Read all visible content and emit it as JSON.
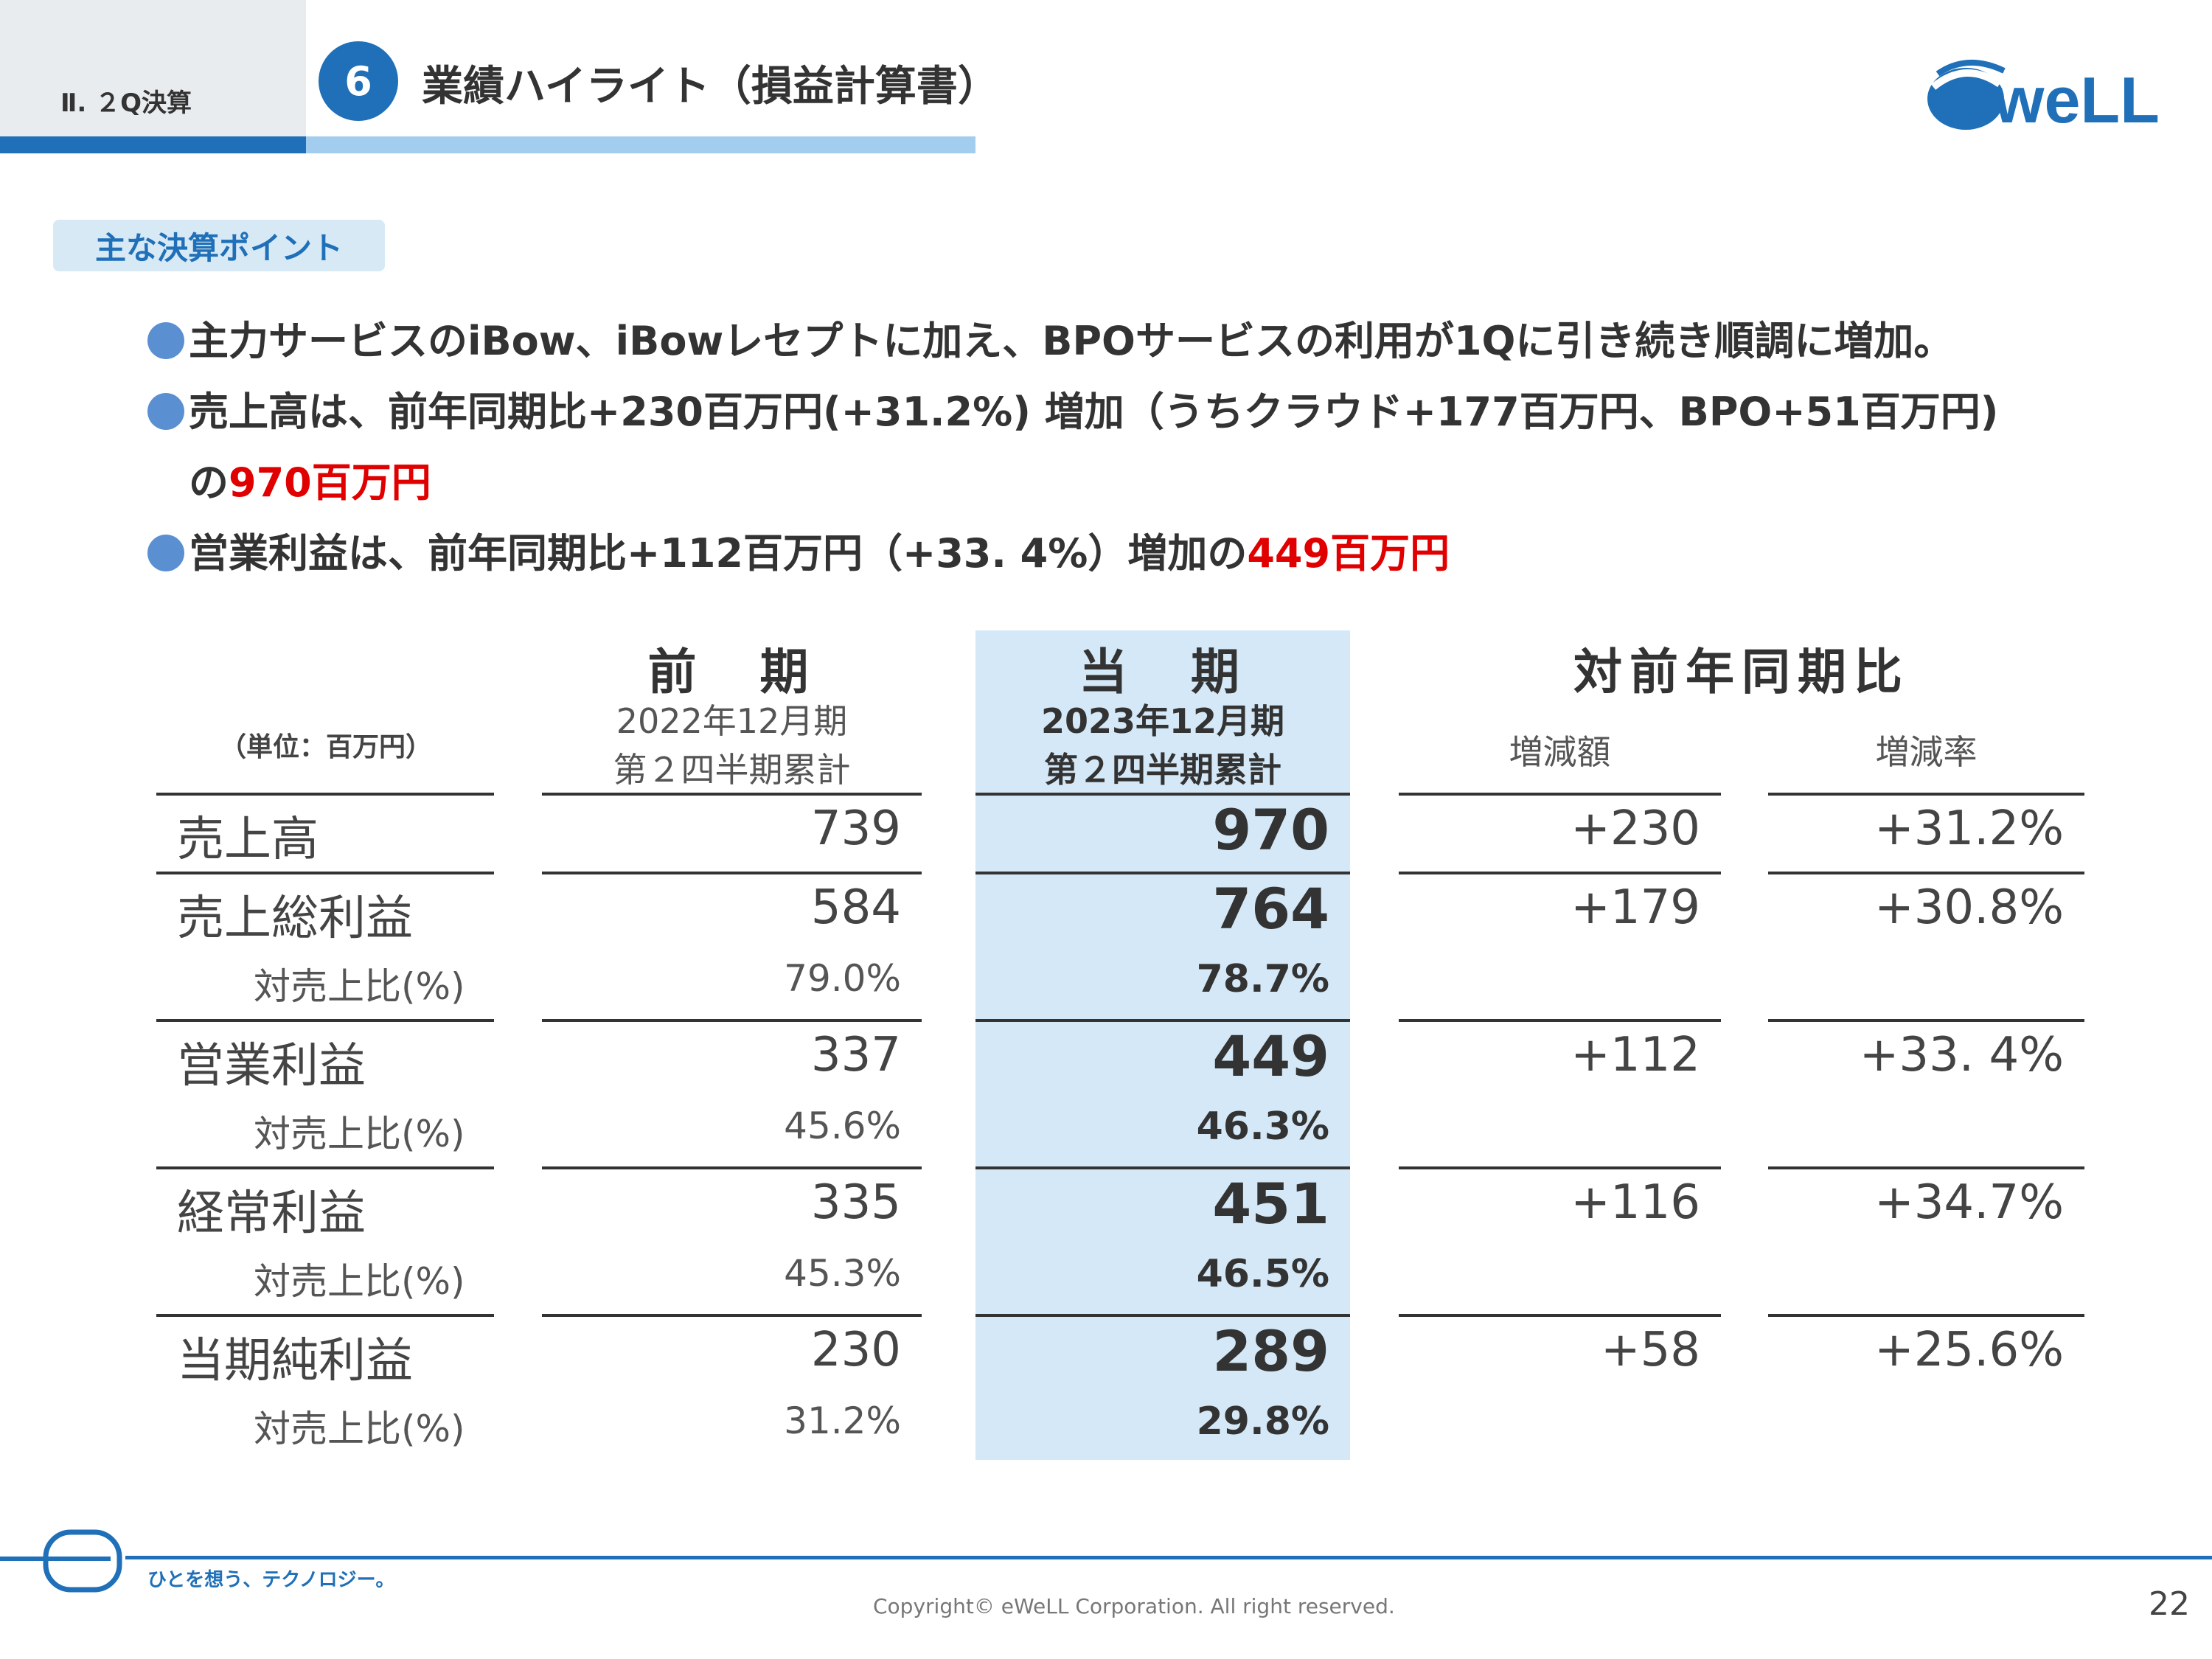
{
  "header": {
    "section_label": "Ⅱ. ２Q決算",
    "section_number": "6",
    "title": "業績ハイライト（損益計算書）"
  },
  "logo": {
    "text": "weLL"
  },
  "key_points": {
    "badge": "主な決算ポイント",
    "bullet1": "主力サービスのiBow、iBowレセプトに加え、BPOサービスの利用が1Qに引き続き順調に増加。",
    "bullet2_line1": "売上高は、前年同期比+230百万円(+31.2%) 増加（うちクラウド+177百万円、BPO+51百万円)",
    "bullet2_line2_prefix": "の",
    "bullet2_line2_highlight": "970百万円",
    "bullet3_prefix": "営業利益は、前年同期比+112百万円（+33. 4%）増加の",
    "bullet3_highlight": "449百万円"
  },
  "table": {
    "unit_label": "（単位：百万円）",
    "prev": {
      "title": "前　期",
      "period": "2022年12月期",
      "subperiod": "第２四半期累計"
    },
    "curr": {
      "title": "当　期",
      "period": "2023年12月期",
      "subperiod": "第２四半期累計"
    },
    "yoy": {
      "title": "対前年同期比",
      "diff_label": "増減額",
      "rate_label": "増減率"
    },
    "rows": [
      {
        "label": "売上高",
        "prev": "739",
        "curr": "970",
        "diff": "+230",
        "rate": "+31.2%"
      },
      {
        "label": "売上総利益",
        "prev": "584",
        "curr": "764",
        "diff": "+179",
        "rate": "+30.8%",
        "sub": {
          "label": "対売上比(%)",
          "prev": "79.0%",
          "curr": "78.7%"
        }
      },
      {
        "label": "営業利益",
        "prev": "337",
        "curr": "449",
        "diff": "+112",
        "rate": "+33. 4%",
        "sub": {
          "label": "対売上比(%)",
          "prev": "45.6%",
          "curr": "46.3%"
        }
      },
      {
        "label": "経常利益",
        "prev": "335",
        "curr": "451",
        "diff": "+116",
        "rate": "+34.7%",
        "sub": {
          "label": "対売上比(%)",
          "prev": "45.3%",
          "curr": "46.5%"
        }
      },
      {
        "label": "当期純利益",
        "prev": "230",
        "curr": "289",
        "diff": "+58",
        "rate": "+25.6%",
        "sub": {
          "label": "対売上比(%)",
          "prev": "31.2%",
          "curr": "29.8%"
        }
      }
    ]
  },
  "footer": {
    "slogan": "ひとを想う、テクノロジー。",
    "copyright": "Copyright© eWeLL Corporation. All right reserved.",
    "page_number": "22"
  },
  "colors": {
    "brand_blue": "#1f70b8",
    "light_blue": "#a3cdef",
    "highlight_bg": "#d4e8f7",
    "accent_red": "#e00000"
  }
}
